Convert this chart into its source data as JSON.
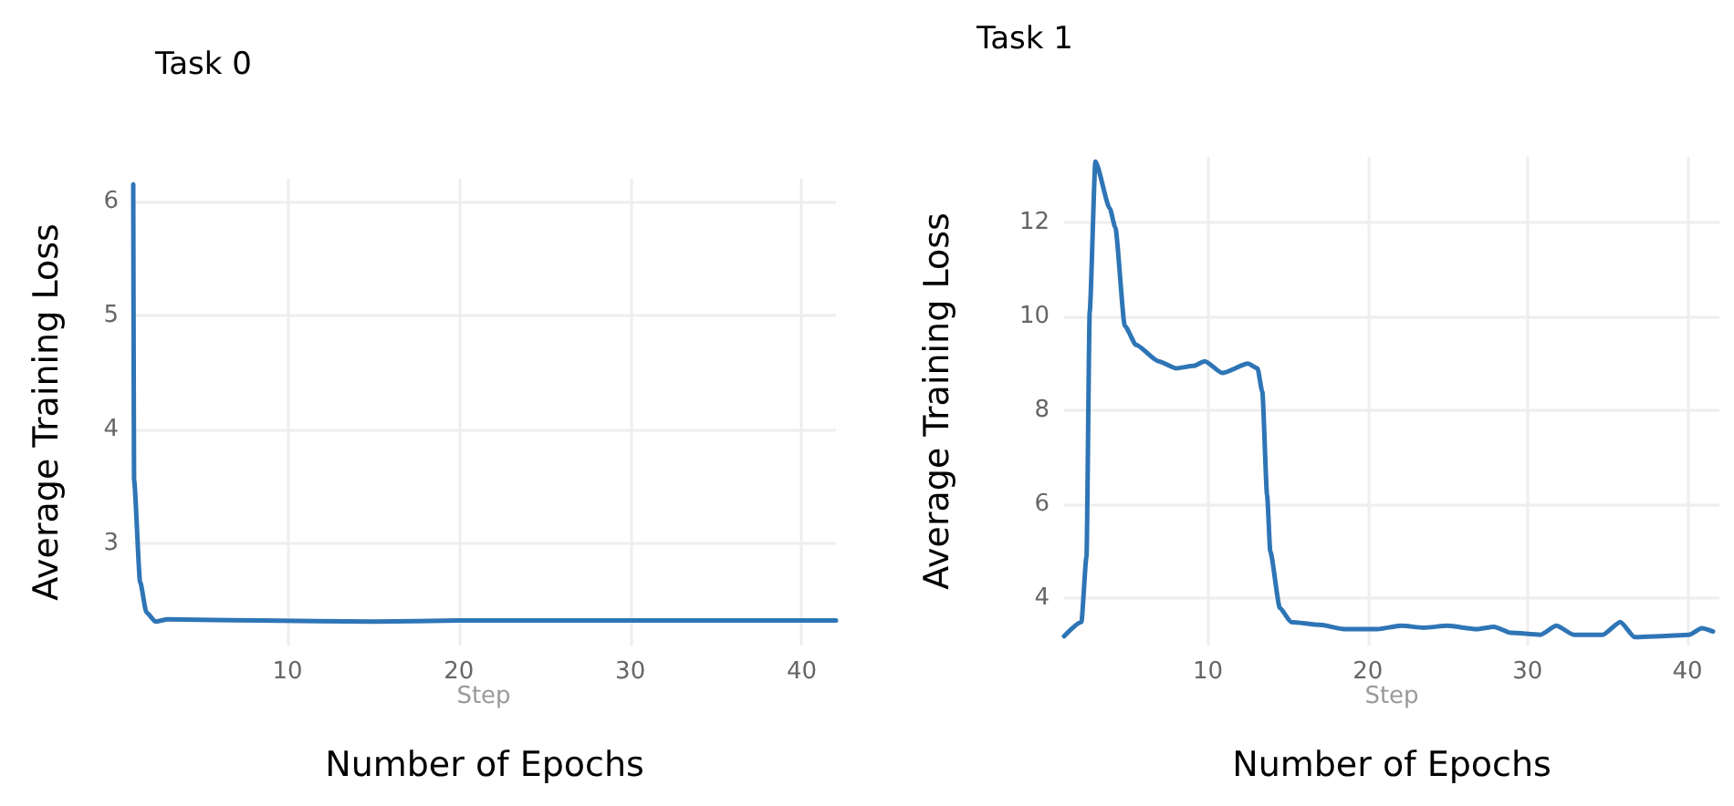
{
  "chart_data": [
    {
      "type": "line",
      "title": "Task 0",
      "xlabel": "Number of Epochs",
      "ylabel": "Average Training Loss",
      "annotations": [
        "Step"
      ],
      "xlim": [
        1,
        42
      ],
      "ylim": [
        2.1,
        6.2
      ],
      "xticks": [
        10,
        20,
        30,
        40
      ],
      "yticks": [
        3,
        4,
        5,
        6
      ],
      "grid": true,
      "series": [
        {
          "color": "#2e75b6",
          "x": [
            1,
            1.05,
            1.4,
            1.77,
            2.3,
            3,
            8.4,
            15,
            20,
            25,
            30,
            35,
            40,
            42
          ],
          "values": [
            6.15,
            3.55,
            2.66,
            2.39,
            2.31,
            2.33,
            2.32,
            2.31,
            2.32,
            2.32,
            2.32,
            2.32,
            2.32,
            2.32
          ]
        }
      ]
    },
    {
      "type": "line",
      "title": "Task 1",
      "xlabel": "Number of Epochs",
      "ylabel": "Average Training Loss",
      "annotations": [
        "Step"
      ],
      "xlim": [
        1,
        42
      ],
      "ylim": [
        3,
        13.4
      ],
      "xticks": [
        10,
        20,
        30,
        40
      ],
      "yticks": [
        4,
        6,
        8,
        10,
        12
      ],
      "grid": true,
      "series": [
        {
          "color": "#2e75b6",
          "x": [
            1,
            2.08,
            2.4,
            2.6,
            2.96,
            3.86,
            4.2,
            4.8,
            5.5,
            6.9,
            8,
            9.1,
            9.8,
            10.9,
            12.5,
            13.1,
            13.4,
            13.7,
            13.9,
            14.5,
            15.2,
            17,
            18.5,
            20.6,
            22.1,
            23.5,
            25,
            26.8,
            27.9,
            28.95,
            30.8,
            31.8,
            32.9,
            34.7,
            35.8,
            36.7,
            38.3,
            40.1,
            40.9,
            41.6
          ],
          "values": [
            3.2,
            3.5,
            4.9,
            10.1,
            13.3,
            12.3,
            11.9,
            9.8,
            9.4,
            9.05,
            8.9,
            8.95,
            9.05,
            8.8,
            9.0,
            8.9,
            8.4,
            6.2,
            5.0,
            3.8,
            3.5,
            3.44,
            3.35,
            3.35,
            3.42,
            3.38,
            3.42,
            3.35,
            3.4,
            3.27,
            3.23,
            3.42,
            3.23,
            3.23,
            3.5,
            3.18,
            3.2,
            3.23,
            3.37,
            3.3
          ]
        }
      ]
    }
  ]
}
